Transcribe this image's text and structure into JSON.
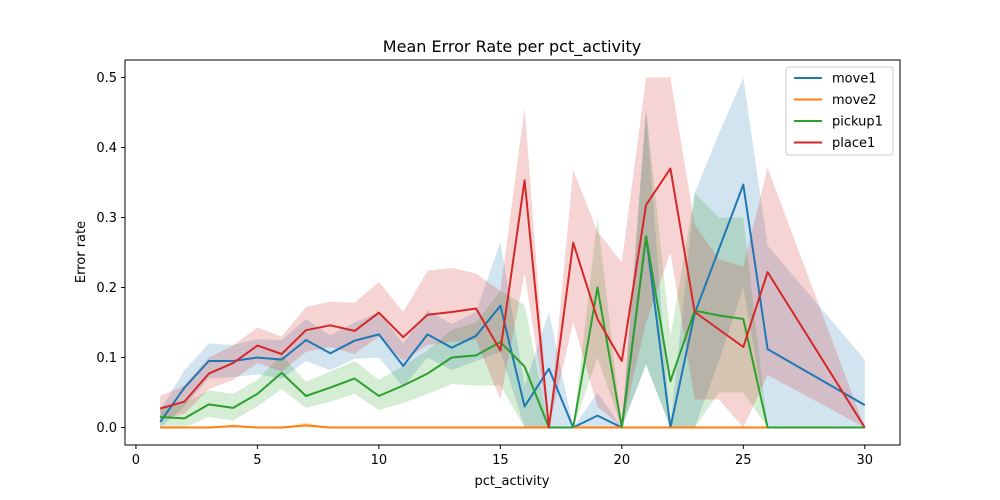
{
  "chart_data": {
    "type": "line",
    "title": "Mean Error Rate per pct_activity",
    "xlabel": "pct_activity",
    "ylabel": "Error rate",
    "xlim": [
      -0.45,
      31.45
    ],
    "ylim": [
      -0.025,
      0.525
    ],
    "xticks": [
      0,
      5,
      10,
      15,
      20,
      25,
      30
    ],
    "yticks": [
      0.0,
      0.1,
      0.2,
      0.3,
      0.4,
      0.5
    ],
    "xtick_labels": [
      "0",
      "5",
      "10",
      "15",
      "20",
      "25",
      "30"
    ],
    "ytick_labels": [
      "0.0",
      "0.1",
      "0.2",
      "0.3",
      "0.4",
      "0.5"
    ],
    "grid": false,
    "legend_position": "top-right",
    "x": [
      1,
      2,
      3,
      4,
      5,
      6,
      7,
      8,
      9,
      10,
      11,
      12,
      13,
      14,
      15,
      16,
      17,
      18,
      19,
      20,
      21,
      22,
      23,
      24,
      25,
      26,
      30
    ],
    "series": [
      {
        "name": "move1",
        "color": "#1f77b4",
        "values": [
          0.008,
          0.057,
          0.095,
          0.095,
          0.1,
          0.097,
          0.125,
          0.106,
          0.124,
          0.133,
          0.088,
          0.133,
          0.114,
          0.131,
          0.174,
          0.03,
          0.084,
          0.0,
          0.017,
          0.0,
          0.273,
          0.0,
          0.163,
          0.255,
          0.347,
          0.112,
          0.032
        ],
        "lower": [
          0.0,
          0.03,
          0.07,
          0.072,
          0.076,
          0.07,
          0.095,
          0.082,
          0.098,
          0.1,
          0.058,
          0.1,
          0.082,
          0.095,
          0.108,
          0.0,
          0.0,
          0.0,
          0.0,
          0.0,
          0.09,
          0.0,
          0.0,
          0.095,
          0.2,
          0.0,
          0.0
        ],
        "upper": [
          0.025,
          0.082,
          0.12,
          0.118,
          0.126,
          0.125,
          0.155,
          0.132,
          0.15,
          0.165,
          0.12,
          0.167,
          0.148,
          0.165,
          0.265,
          0.06,
          0.165,
          0.0,
          0.05,
          0.0,
          0.455,
          0.0,
          0.335,
          0.42,
          0.5,
          0.26,
          0.097
        ]
      },
      {
        "name": "move2",
        "color": "#ff7f0e",
        "values": [
          0.0,
          0.0,
          0.0,
          0.002,
          0.0,
          0.0,
          0.003,
          0.0,
          0.0,
          0.0,
          0.0,
          0.0,
          0.0,
          0.0,
          0.0,
          0.0,
          0.0,
          0.0,
          0.0,
          0.0,
          0.0,
          0.0,
          0.0,
          0.0,
          0.0,
          0.0,
          0.0
        ],
        "lower": [
          0.0,
          0.0,
          0.0,
          0.0,
          0.0,
          0.0,
          0.0,
          0.0,
          0.0,
          0.0,
          0.0,
          0.0,
          0.0,
          0.0,
          0.0,
          0.0,
          0.0,
          0.0,
          0.0,
          0.0,
          0.0,
          0.0,
          0.0,
          0.0,
          0.0,
          0.0,
          0.0
        ],
        "upper": [
          0.0,
          0.0,
          0.0,
          0.005,
          0.0,
          0.0,
          0.007,
          0.0,
          0.0,
          0.0,
          0.0,
          0.0,
          0.0,
          0.0,
          0.0,
          0.0,
          0.0,
          0.0,
          0.0,
          0.0,
          0.0,
          0.0,
          0.0,
          0.0,
          0.0,
          0.0,
          0.0
        ]
      },
      {
        "name": "pickup1",
        "color": "#2ca02c",
        "values": [
          0.015,
          0.013,
          0.033,
          0.028,
          0.048,
          0.078,
          0.045,
          0.057,
          0.07,
          0.045,
          0.06,
          0.077,
          0.1,
          0.103,
          0.122,
          0.087,
          0.0,
          0.0,
          0.2,
          0.0,
          0.273,
          0.066,
          0.167,
          0.16,
          0.155,
          0.0,
          0.0
        ],
        "lower": [
          0.0,
          0.0,
          0.015,
          0.01,
          0.03,
          0.055,
          0.028,
          0.037,
          0.048,
          0.025,
          0.035,
          0.048,
          0.062,
          0.06,
          0.06,
          0.0,
          0.0,
          0.0,
          0.1,
          0.0,
          0.09,
          0.0,
          0.0,
          0.05,
          0.05,
          0.0,
          0.0
        ],
        "upper": [
          0.03,
          0.035,
          0.053,
          0.048,
          0.068,
          0.104,
          0.065,
          0.08,
          0.095,
          0.068,
          0.088,
          0.11,
          0.14,
          0.15,
          0.195,
          0.175,
          0.0,
          0.0,
          0.3,
          0.0,
          0.455,
          0.13,
          0.335,
          0.3,
          0.3,
          0.0,
          0.0
        ]
      },
      {
        "name": "place1",
        "color": "#d62728",
        "values": [
          0.027,
          0.037,
          0.077,
          0.092,
          0.117,
          0.105,
          0.139,
          0.146,
          0.138,
          0.164,
          0.129,
          0.161,
          0.165,
          0.17,
          0.11,
          0.353,
          0.0,
          0.264,
          0.155,
          0.095,
          0.318,
          0.37,
          0.165,
          0.14,
          0.115,
          0.222,
          0.0
        ],
        "lower": [
          0.01,
          0.02,
          0.055,
          0.068,
          0.092,
          0.08,
          0.108,
          0.115,
          0.105,
          0.13,
          0.095,
          0.118,
          0.122,
          0.125,
          0.04,
          0.22,
          0.0,
          0.15,
          0.03,
          0.0,
          0.15,
          0.25,
          0.04,
          0.04,
          0.0,
          0.075,
          0.0
        ],
        "upper": [
          0.045,
          0.06,
          0.1,
          0.117,
          0.143,
          0.13,
          0.172,
          0.18,
          0.178,
          0.208,
          0.165,
          0.224,
          0.228,
          0.22,
          0.195,
          0.457,
          0.0,
          0.368,
          0.28,
          0.236,
          0.5,
          0.5,
          0.29,
          0.24,
          0.23,
          0.371,
          0.0
        ]
      }
    ]
  }
}
